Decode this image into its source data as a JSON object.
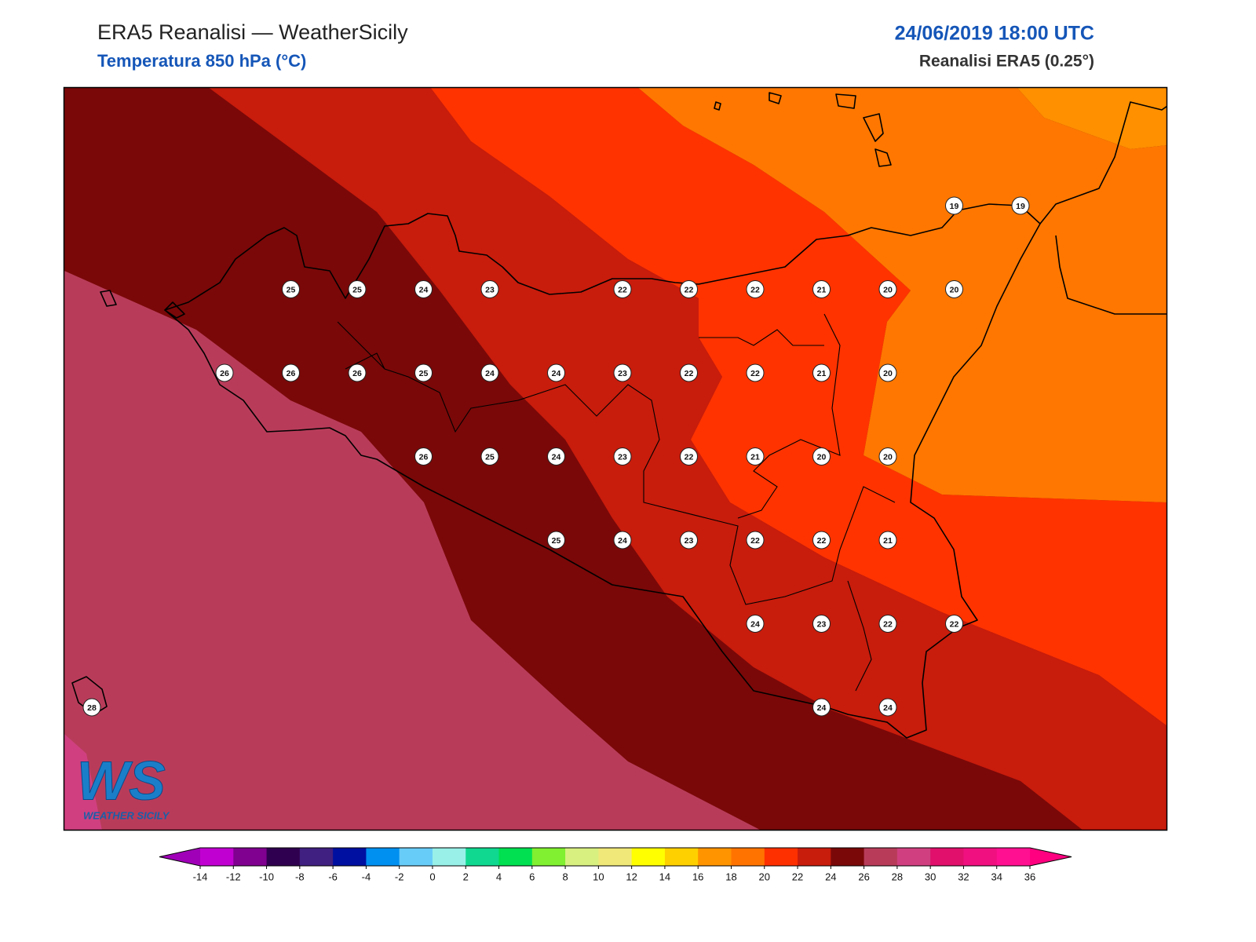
{
  "header": {
    "title": "ERA5 Reanalisi — WeatherSicily",
    "subtitle": "Temperatura 850 hPa (°C)",
    "date": "24/06/2019 18:00 UTC",
    "source": "Reanalisi ERA5 (0.25°)"
  },
  "map": {
    "points": [
      [
        null,
        null,
        null,
        null,
        null,
        null,
        null,
        null,
        null,
        null,
        null,
        null,
        null,
        19,
        19
      ],
      [
        null,
        null,
        null,
        25,
        25,
        24,
        23,
        null,
        22,
        22,
        22,
        21,
        20,
        20,
        null
      ],
      [
        null,
        null,
        26,
        26,
        26,
        25,
        24,
        24,
        23,
        22,
        22,
        21,
        20,
        null,
        null
      ],
      [
        null,
        null,
        null,
        null,
        null,
        26,
        25,
        24,
        23,
        22,
        21,
        20,
        20,
        null,
        null
      ],
      [
        null,
        null,
        null,
        null,
        null,
        null,
        null,
        25,
        24,
        23,
        22,
        22,
        21,
        null,
        null
      ],
      [
        null,
        null,
        null,
        null,
        null,
        null,
        null,
        null,
        null,
        null,
        24,
        23,
        22,
        22,
        null
      ],
      [
        28,
        null,
        null,
        null,
        null,
        null,
        null,
        null,
        null,
        null,
        null,
        24,
        24,
        null,
        null
      ]
    ]
  },
  "logo": {
    "mark": "WS",
    "name": "WEATHER SICILY"
  },
  "colorbar": {
    "ticks": [
      -14,
      -12,
      -10,
      -8,
      -6,
      -4,
      -2,
      0,
      2,
      4,
      6,
      8,
      10,
      12,
      14,
      16,
      18,
      20,
      22,
      24,
      26,
      28,
      30,
      32,
      34,
      36
    ],
    "colors": [
      "#c000d0",
      "#800090",
      "#300050",
      "#402080",
      "#0010a0",
      "#0090f0",
      "#68ccf8",
      "#98f0e8",
      "#10d890",
      "#00e050",
      "#80f030",
      "#d8f080",
      "#f0e878",
      "#ffff00",
      "#ffd000",
      "#ff9400",
      "#ff7400",
      "#ff3000",
      "#c81c0c",
      "#7a0808",
      "#b83c5a",
      "#d04080",
      "#e0106c",
      "#f01080",
      "#ff1090"
    ],
    "extend_colors": [
      "#a000b8",
      "#ff0080"
    ]
  }
}
